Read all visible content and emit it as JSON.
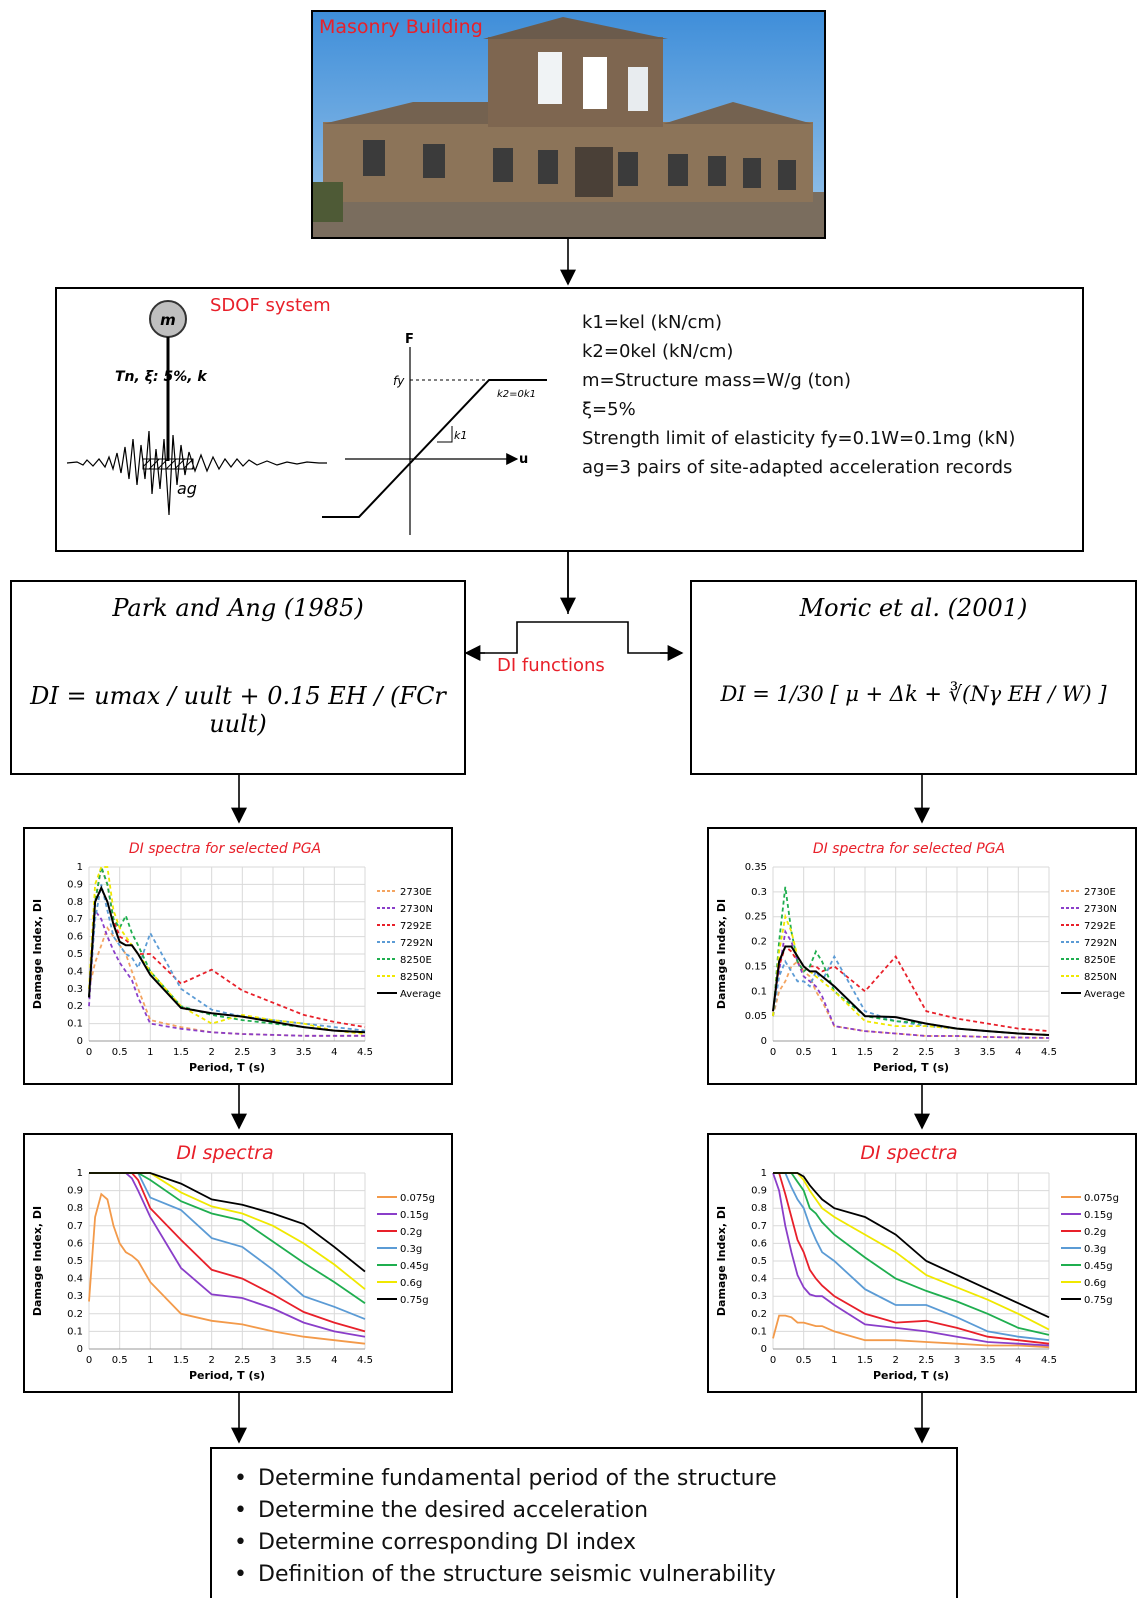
{
  "photo": {
    "title": "Masonry Building"
  },
  "sdof": {
    "title": "SDOF system",
    "mass_label": "m",
    "params_label": "Tn, ξ: 5%, k",
    "ag_label": "ag",
    "axis_f": "F",
    "axis_u": "u",
    "fy_label": "fy",
    "k1_label": "k1",
    "k2_label": "k2=0k1",
    "props": [
      "k1=kel (kN/cm)",
      "k2=0kel (kN/cm)",
      "m=Structure mass=W/g (ton)",
      "ξ=5%",
      "Strength limit of elasticity fy=0.1W=0.1mg (kN)",
      "ag=3 pairs of site-adapted acceleration records"
    ]
  },
  "models": {
    "left": {
      "title": "Park and Ang (1985)",
      "formula": "DI = umax / uult + 0.15 EH / (FCr uult)"
    },
    "right": {
      "title": "Moric et al. (2001)",
      "formula": "DI = 1/30 [ μ + Δk + ∛(Nγ EH / W) ]"
    },
    "connector": "DI functions"
  },
  "colors": {
    "orange": "#f4a460",
    "purple": "#8a3ec9",
    "red": "#e8202a",
    "blue": "#5b9bd5",
    "green": "#1fae4f",
    "yellow": "#f0e800",
    "black": "#000000",
    "orange_solid": "#f39a4a"
  },
  "chart_data": [
    {
      "id": "pa-selected",
      "type": "line",
      "title": "DI spectra for selected PGA",
      "xlabel": "Period, T (s)",
      "ylabel": "Damage Index, DI",
      "xlim": [
        0,
        4.5
      ],
      "ylim": [
        0,
        1
      ],
      "xticks": [
        "0",
        "0.5",
        "1",
        "1.5",
        "2",
        "2.5",
        "3",
        "3.5",
        "4",
        "4.5"
      ],
      "yticks": [
        "0",
        "0.1",
        "0.2",
        "0.3",
        "0.4",
        "0.5",
        "0.6",
        "0.7",
        "0.8",
        "0.9",
        "1"
      ],
      "x": [
        0,
        0.1,
        0.2,
        0.3,
        0.4,
        0.5,
        0.6,
        0.7,
        0.8,
        1,
        1.5,
        2,
        2.5,
        3,
        3.5,
        4,
        4.5
      ],
      "series": [
        {
          "name": "2730E",
          "color": "#f4a460",
          "dash": true,
          "values": [
            0.3,
            0.45,
            0.55,
            0.65,
            0.6,
            0.55,
            0.5,
            0.4,
            0.3,
            0.12,
            0.08,
            0.05,
            0.04,
            0.035,
            0.03,
            0.03,
            0.03
          ]
        },
        {
          "name": "2730N",
          "color": "#8a3ec9",
          "dash": true,
          "values": [
            0.2,
            0.75,
            0.7,
            0.6,
            0.52,
            0.45,
            0.4,
            0.35,
            0.25,
            0.1,
            0.07,
            0.05,
            0.04,
            0.035,
            0.03,
            0.03,
            0.03
          ]
        },
        {
          "name": "7292E",
          "color": "#e8202a",
          "dash": true,
          "values": [
            0.25,
            0.8,
            1.0,
            0.9,
            0.7,
            0.6,
            0.58,
            0.55,
            0.5,
            0.5,
            0.33,
            0.41,
            0.29,
            0.22,
            0.15,
            0.11,
            0.08
          ]
        },
        {
          "name": "7292N",
          "color": "#5b9bd5",
          "dash": true,
          "values": [
            0.25,
            0.7,
            0.9,
            0.75,
            0.6,
            0.55,
            0.5,
            0.48,
            0.42,
            0.62,
            0.3,
            0.18,
            0.14,
            0.12,
            0.1,
            0.08,
            0.06
          ]
        },
        {
          "name": "8250E",
          "color": "#1fae4f",
          "dash": true,
          "values": [
            0.25,
            0.8,
            1.0,
            0.9,
            0.7,
            0.65,
            0.72,
            0.62,
            0.55,
            0.4,
            0.2,
            0.15,
            0.12,
            0.1,
            0.08,
            0.06,
            0.05
          ]
        },
        {
          "name": "8250N",
          "color": "#f0e800",
          "dash": true,
          "values": [
            0.3,
            0.9,
            1.0,
            1.0,
            0.75,
            0.65,
            0.6,
            0.55,
            0.5,
            0.4,
            0.2,
            0.1,
            0.15,
            0.12,
            0.1,
            0.06,
            0.04
          ]
        },
        {
          "name": "Average",
          "color": "#000000",
          "dash": false,
          "values": [
            0.25,
            0.8,
            0.88,
            0.8,
            0.67,
            0.57,
            0.55,
            0.55,
            0.5,
            0.38,
            0.19,
            0.16,
            0.14,
            0.11,
            0.08,
            0.06,
            0.05
          ]
        }
      ]
    },
    {
      "id": "ma-selected",
      "type": "line",
      "title": "DI spectra for selected PGA",
      "xlabel": "Period, T (s)",
      "ylabel": "Damage Index, DI",
      "xlim": [
        0,
        4.5
      ],
      "ylim": [
        0,
        0.35
      ],
      "xticks": [
        "0",
        "0.5",
        "1",
        "1.5",
        "2",
        "2.5",
        "3",
        "3.5",
        "4",
        "4.5"
      ],
      "yticks": [
        "0",
        "0.05",
        "0.1",
        "0.15",
        "0.2",
        "0.25",
        "0.3",
        "0.35"
      ],
      "x": [
        0,
        0.1,
        0.2,
        0.3,
        0.4,
        0.5,
        0.6,
        0.7,
        0.8,
        1,
        1.5,
        2,
        2.5,
        3,
        3.5,
        4,
        4.5
      ],
      "series": [
        {
          "name": "2730E",
          "color": "#f4a460",
          "dash": true,
          "values": [
            0.05,
            0.1,
            0.12,
            0.15,
            0.16,
            0.14,
            0.13,
            0.1,
            0.08,
            0.03,
            0.02,
            0.015,
            0.01,
            0.01,
            0.008,
            0.007,
            0.006
          ]
        },
        {
          "name": "2730N",
          "color": "#8a3ec9",
          "dash": true,
          "values": [
            0.05,
            0.14,
            0.22,
            0.2,
            0.16,
            0.13,
            0.12,
            0.11,
            0.09,
            0.03,
            0.02,
            0.015,
            0.01,
            0.01,
            0.008,
            0.007,
            0.006
          ]
        },
        {
          "name": "7292E",
          "color": "#e8202a",
          "dash": true,
          "values": [
            0.06,
            0.15,
            0.19,
            0.18,
            0.16,
            0.14,
            0.15,
            0.15,
            0.14,
            0.15,
            0.1,
            0.17,
            0.06,
            0.045,
            0.035,
            0.025,
            0.02
          ]
        },
        {
          "name": "7292N",
          "color": "#5b9bd5",
          "dash": true,
          "values": [
            0.05,
            0.13,
            0.16,
            0.14,
            0.12,
            0.12,
            0.11,
            0.14,
            0.12,
            0.17,
            0.06,
            0.04,
            0.03,
            0.025,
            0.02,
            0.015,
            0.012
          ]
        },
        {
          "name": "8250E",
          "color": "#1fae4f",
          "dash": true,
          "values": [
            0.05,
            0.2,
            0.31,
            0.22,
            0.16,
            0.14,
            0.15,
            0.18,
            0.16,
            0.1,
            0.05,
            0.04,
            0.035,
            0.025,
            0.02,
            0.015,
            0.012
          ]
        },
        {
          "name": "8250N",
          "color": "#f0e800",
          "dash": true,
          "values": [
            0.05,
            0.18,
            0.25,
            0.22,
            0.17,
            0.15,
            0.14,
            0.13,
            0.12,
            0.1,
            0.04,
            0.03,
            0.03,
            0.025,
            0.02,
            0.015,
            0.012
          ]
        },
        {
          "name": "Average",
          "color": "#000000",
          "dash": false,
          "values": [
            0.06,
            0.16,
            0.19,
            0.19,
            0.17,
            0.15,
            0.14,
            0.14,
            0.13,
            0.11,
            0.05,
            0.048,
            0.035,
            0.025,
            0.02,
            0.015,
            0.012
          ]
        }
      ]
    },
    {
      "id": "pa-pga",
      "type": "line",
      "title": "DI spectra",
      "xlabel": "Period, T (s)",
      "ylabel": "Damage Index, DI",
      "xlim": [
        0,
        4.5
      ],
      "ylim": [
        0,
        1
      ],
      "xticks": [
        "0",
        "0.5",
        "1",
        "1.5",
        "2",
        "2.5",
        "3",
        "3.5",
        "4",
        "4.5"
      ],
      "yticks": [
        "0",
        "0.1",
        "0.2",
        "0.3",
        "0.4",
        "0.5",
        "0.6",
        "0.7",
        "0.8",
        "0.9",
        "1"
      ],
      "x": [
        0,
        0.1,
        0.2,
        0.3,
        0.4,
        0.5,
        0.6,
        0.7,
        0.8,
        1,
        1.5,
        2,
        2.5,
        3,
        3.5,
        4,
        4.5
      ],
      "series": [
        {
          "name": "0.075g",
          "color": "#f39a4a",
          "dash": false,
          "values": [
            0.27,
            0.75,
            0.88,
            0.85,
            0.7,
            0.6,
            0.55,
            0.53,
            0.5,
            0.38,
            0.2,
            0.16,
            0.14,
            0.1,
            0.07,
            0.05,
            0.03
          ]
        },
        {
          "name": "0.15g",
          "color": "#8a3ec9",
          "dash": false,
          "values": [
            1,
            1,
            1,
            1,
            1,
            1,
            1,
            0.97,
            0.9,
            0.75,
            0.46,
            0.31,
            0.29,
            0.23,
            0.15,
            0.1,
            0.07
          ]
        },
        {
          "name": "0.2g",
          "color": "#e8202a",
          "dash": false,
          "values": [
            1,
            1,
            1,
            1,
            1,
            1,
            1,
            1,
            0.96,
            0.8,
            0.62,
            0.45,
            0.4,
            0.31,
            0.21,
            0.15,
            0.1
          ]
        },
        {
          "name": "0.3g",
          "color": "#5b9bd5",
          "dash": false,
          "values": [
            1,
            1,
            1,
            1,
            1,
            1,
            1,
            1,
            1,
            0.86,
            0.79,
            0.63,
            0.58,
            0.45,
            0.3,
            0.24,
            0.17
          ]
        },
        {
          "name": "0.45g",
          "color": "#1fae4f",
          "dash": false,
          "values": [
            1,
            1,
            1,
            1,
            1,
            1,
            1,
            1,
            1,
            0.96,
            0.84,
            0.77,
            0.73,
            0.61,
            0.49,
            0.38,
            0.26
          ]
        },
        {
          "name": "0.6g",
          "color": "#f0e800",
          "dash": false,
          "values": [
            1,
            1,
            1,
            1,
            1,
            1,
            1,
            1,
            1,
            1,
            0.89,
            0.81,
            0.77,
            0.7,
            0.6,
            0.48,
            0.34
          ]
        },
        {
          "name": "0.75g",
          "color": "#000000",
          "dash": false,
          "values": [
            1,
            1,
            1,
            1,
            1,
            1,
            1,
            1,
            1,
            1,
            0.94,
            0.85,
            0.82,
            0.77,
            0.71,
            0.58,
            0.44
          ]
        }
      ]
    },
    {
      "id": "ma-pga",
      "type": "line",
      "title": "DI spectra",
      "xlabel": "Period, T (s)",
      "ylabel": "Damage Index, DI",
      "xlim": [
        0,
        4.5
      ],
      "ylim": [
        0,
        1
      ],
      "xticks": [
        "0",
        "0.5",
        "1",
        "1.5",
        "2",
        "2.5",
        "3",
        "3.5",
        "4",
        "4.5"
      ],
      "yticks": [
        "0",
        "0.1",
        "0.2",
        "0.3",
        "0.4",
        "0.5",
        "0.6",
        "0.7",
        "0.8",
        "0.9",
        "1"
      ],
      "x": [
        0,
        0.1,
        0.2,
        0.3,
        0.4,
        0.5,
        0.6,
        0.7,
        0.8,
        1,
        1.5,
        2,
        2.5,
        3,
        3.5,
        4,
        4.5
      ],
      "series": [
        {
          "name": "0.075g",
          "color": "#f39a4a",
          "dash": false,
          "values": [
            0.06,
            0.19,
            0.19,
            0.18,
            0.15,
            0.15,
            0.14,
            0.13,
            0.13,
            0.1,
            0.05,
            0.05,
            0.04,
            0.03,
            0.02,
            0.02,
            0.01
          ]
        },
        {
          "name": "0.15g",
          "color": "#8a3ec9",
          "dash": false,
          "values": [
            1,
            0.9,
            0.7,
            0.55,
            0.42,
            0.35,
            0.31,
            0.3,
            0.3,
            0.25,
            0.14,
            0.12,
            0.1,
            0.07,
            0.04,
            0.03,
            0.02
          ]
        },
        {
          "name": "0.2g",
          "color": "#e8202a",
          "dash": false,
          "values": [
            1,
            1,
            0.88,
            0.75,
            0.62,
            0.55,
            0.45,
            0.4,
            0.36,
            0.3,
            0.2,
            0.15,
            0.16,
            0.12,
            0.07,
            0.05,
            0.03
          ]
        },
        {
          "name": "0.3g",
          "color": "#5b9bd5",
          "dash": false,
          "values": [
            1,
            1,
            1,
            0.92,
            0.85,
            0.8,
            0.7,
            0.62,
            0.55,
            0.5,
            0.34,
            0.25,
            0.25,
            0.18,
            0.1,
            0.07,
            0.05
          ]
        },
        {
          "name": "0.45g",
          "color": "#1fae4f",
          "dash": false,
          "values": [
            1,
            1,
            1,
            1,
            0.95,
            0.9,
            0.8,
            0.77,
            0.72,
            0.65,
            0.52,
            0.4,
            0.33,
            0.27,
            0.2,
            0.12,
            0.08
          ]
        },
        {
          "name": "0.6g",
          "color": "#f0e800",
          "dash": false,
          "values": [
            1,
            1,
            1,
            1,
            1,
            0.96,
            0.9,
            0.85,
            0.8,
            0.75,
            0.65,
            0.55,
            0.42,
            0.35,
            0.28,
            0.2,
            0.11
          ]
        },
        {
          "name": "0.75g",
          "color": "#000000",
          "dash": false,
          "values": [
            1,
            1,
            1,
            1,
            1,
            0.98,
            0.93,
            0.89,
            0.85,
            0.8,
            0.75,
            0.65,
            0.5,
            0.42,
            0.34,
            0.26,
            0.18
          ]
        }
      ]
    }
  ],
  "final": {
    "items": [
      "Determine fundamental period of the structure",
      "Determine the desired acceleration",
      "Determine corresponding DI index",
      "Definition of the structure seismic vulnerability"
    ]
  }
}
